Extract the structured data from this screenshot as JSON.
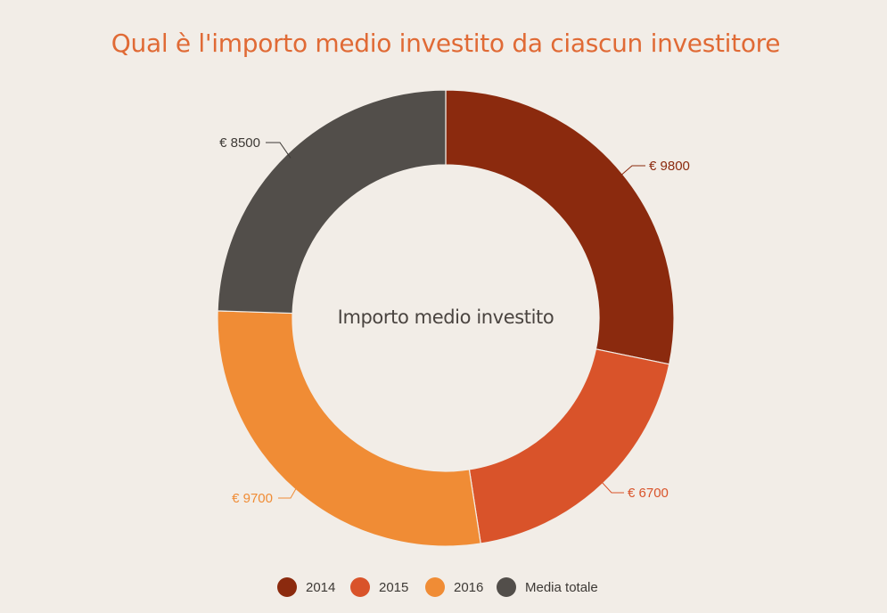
{
  "chart_data": {
    "type": "pie",
    "title": "Qual è l'importo medio investito da ciascun investitore",
    "center_label": "Importo medio investito",
    "categories": [
      "2014",
      "2015",
      "2016",
      "Media totale"
    ],
    "values": [
      9800,
      6700,
      9700,
      8500
    ],
    "value_labels": [
      "€ 9800",
      "€ 6700",
      "€ 9700",
      "€ 8500"
    ],
    "colors": [
      "#8b2a0e",
      "#d9532a",
      "#f08c35",
      "#524e4a"
    ],
    "label_colors": [
      "#8b2a0e",
      "#d9532a",
      "#f08c35",
      "#3d3935"
    ],
    "legend_position": "bottom"
  }
}
